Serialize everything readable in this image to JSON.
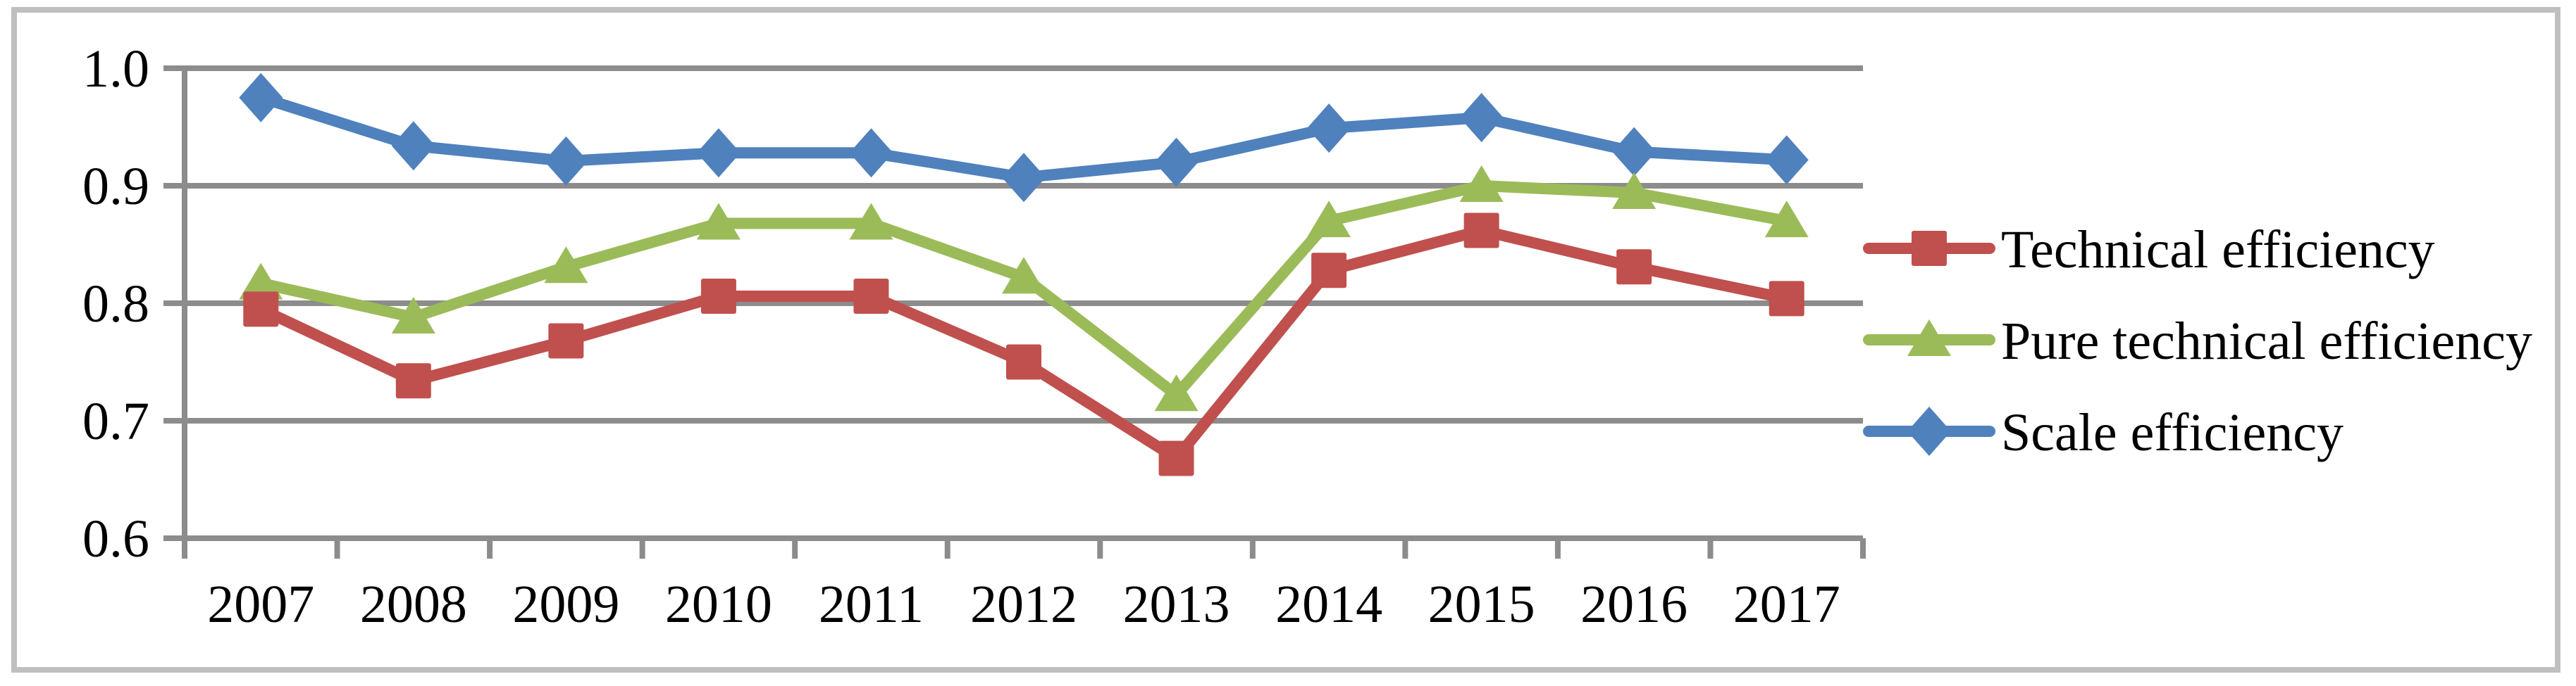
{
  "figure": {
    "background": "#FFFFFF",
    "border_color": "#BFBFBF"
  },
  "chart_data": {
    "type": "line",
    "title": "",
    "xlabel": "",
    "ylabel": "",
    "categories": [
      "2007",
      "2008",
      "2009",
      "2010",
      "2011",
      "2012",
      "2013",
      "2014",
      "2015",
      "2016",
      "2017"
    ],
    "series": [
      {
        "name": "Technical efficiency",
        "marker": "square",
        "color": "#C0504D",
        "values": [
          0.795,
          0.734,
          0.768,
          0.806,
          0.806,
          0.75,
          0.668,
          0.828,
          0.862,
          0.831,
          0.804
        ]
      },
      {
        "name": "Pure technical efficiency",
        "marker": "triangle",
        "color": "#9BBB59",
        "values": [
          0.817,
          0.788,
          0.831,
          0.868,
          0.868,
          0.822,
          0.722,
          0.87,
          0.9,
          0.894,
          0.87
        ]
      },
      {
        "name": "Scale efficiency",
        "marker": "diamond",
        "color": "#4F81BD",
        "values": [
          0.975,
          0.934,
          0.921,
          0.928,
          0.928,
          0.907,
          0.92,
          0.949,
          0.958,
          0.929,
          0.922
        ]
      }
    ],
    "ylim": [
      0.6,
      1.0
    ],
    "yticks": [
      {
        "value": 1.0,
        "label": "1.0"
      },
      {
        "value": 0.9,
        "label": "0.9"
      },
      {
        "value": 0.8,
        "label": "0.8"
      },
      {
        "value": 0.7,
        "label": "0.7"
      },
      {
        "value": 0.6,
        "label": "0.6"
      }
    ],
    "grid": "horizontal",
    "grid_color": "#8C8C8C",
    "legend_position": "right"
  }
}
